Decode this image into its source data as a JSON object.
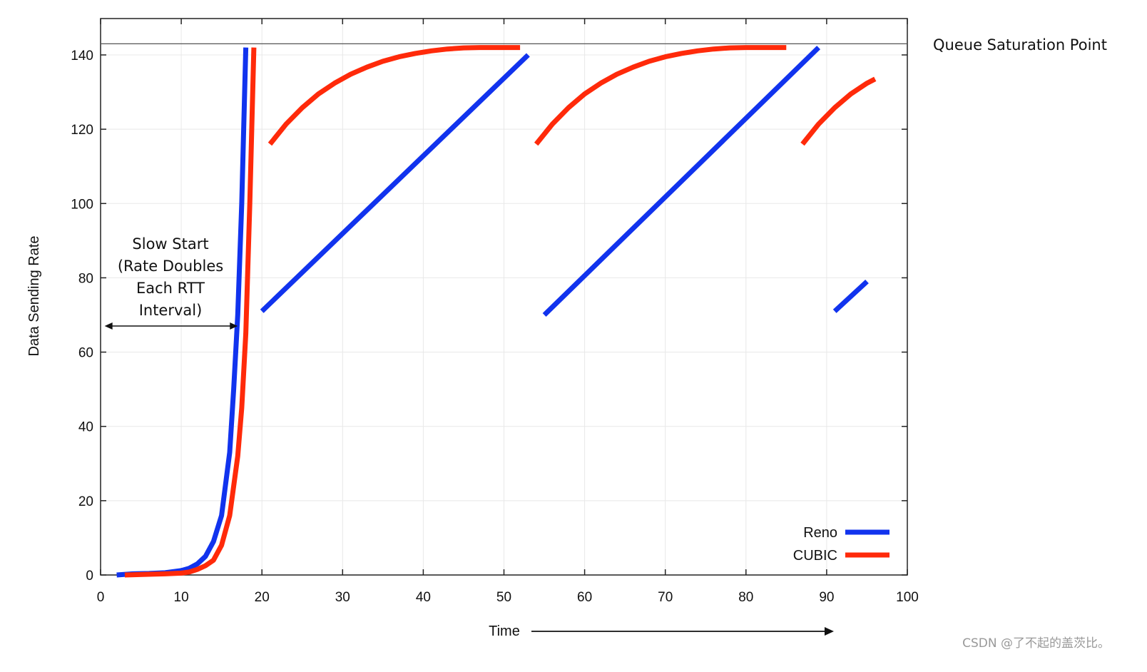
{
  "chart_data": {
    "type": "line",
    "title": "",
    "xlabel": "Time",
    "ylabel": "Data Sending Rate",
    "xlim": [
      0,
      100
    ],
    "ylim": [
      0,
      150
    ],
    "xticks": [
      0,
      10,
      20,
      30,
      40,
      50,
      60,
      70,
      80,
      90,
      100
    ],
    "yticks": [
      0,
      20,
      40,
      60,
      80,
      100,
      120,
      140
    ],
    "grid": true,
    "legend": {
      "placement": "bottom-right",
      "entries": [
        "Reno",
        "CUBIC"
      ]
    },
    "reference_line": {
      "y": 143,
      "label": "Queue Saturation Point"
    },
    "annotations": [
      {
        "lines": [
          "Slow Start",
          "(Rate Doubles",
          "Each RTT",
          "Interval)"
        ],
        "arrow_x": [
          0.5,
          17
        ]
      }
    ],
    "colors": {
      "Reno": "#1133ee",
      "CUBIC": "#ff2a0a"
    },
    "series": [
      {
        "name": "Reno",
        "segments": [
          [
            [
              2,
              0
            ],
            [
              4,
              0.3
            ],
            [
              6,
              0.4
            ],
            [
              8,
              0.6
            ],
            [
              10,
              1.2
            ],
            [
              11,
              1.8
            ],
            [
              12,
              3
            ],
            [
              13,
              5
            ],
            [
              14,
              9
            ],
            [
              15,
              16
            ],
            [
              16,
              33
            ],
            [
              16.5,
              50
            ],
            [
              17,
              70
            ],
            [
              17.5,
              100
            ],
            [
              18,
              142
            ]
          ],
          [
            [
              20,
              71
            ],
            [
              53,
              140
            ]
          ],
          [
            [
              55,
              70
            ],
            [
              89,
              142
            ]
          ],
          [
            [
              91,
              71
            ],
            [
              95,
              79
            ]
          ]
        ]
      },
      {
        "name": "CUBIC",
        "segments": [
          [
            [
              3,
              0
            ],
            [
              6,
              0.2
            ],
            [
              8,
              0.3
            ],
            [
              10,
              0.5
            ],
            [
              11,
              0.8
            ],
            [
              12,
              1.5
            ],
            [
              13,
              2.5
            ],
            [
              14,
              4
            ],
            [
              15,
              8
            ],
            [
              16,
              16
            ],
            [
              17,
              32
            ],
            [
              17.5,
              45
            ],
            [
              18,
              65
            ],
            [
              18.5,
              100
            ],
            [
              19,
              142
            ]
          ],
          [
            [
              21,
              116
            ],
            [
              23,
              121.4
            ],
            [
              25,
              125.8
            ],
            [
              27,
              129.5
            ],
            [
              29,
              132.4
            ],
            [
              31,
              134.8
            ],
            [
              33,
              136.7
            ],
            [
              35,
              138.3
            ],
            [
              37,
              139.5
            ],
            [
              39,
              140.4
            ],
            [
              41,
              141.1
            ],
            [
              43,
              141.6
            ],
            [
              45,
              141.9
            ],
            [
              47,
              142
            ],
            [
              52,
              142
            ]
          ],
          [
            [
              54,
              116
            ],
            [
              56,
              121.4
            ],
            [
              58,
              125.8
            ],
            [
              60,
              129.5
            ],
            [
              62,
              132.4
            ],
            [
              64,
              134.8
            ],
            [
              66,
              136.7
            ],
            [
              68,
              138.3
            ],
            [
              70,
              139.5
            ],
            [
              72,
              140.4
            ],
            [
              74,
              141.1
            ],
            [
              76,
              141.6
            ],
            [
              78,
              141.9
            ],
            [
              80,
              142
            ],
            [
              85,
              142
            ]
          ],
          [
            [
              87,
              116
            ],
            [
              89,
              121.4
            ],
            [
              91,
              125.8
            ],
            [
              93,
              129.5
            ],
            [
              95,
              132.4
            ],
            [
              96,
              133.5
            ]
          ]
        ]
      }
    ]
  },
  "watermark": "CSDN @了不起的盖茨比。"
}
